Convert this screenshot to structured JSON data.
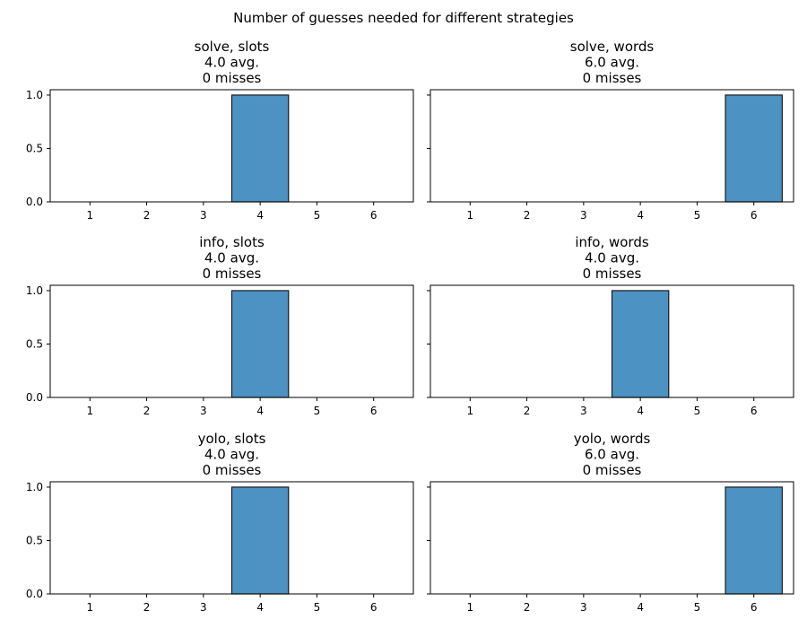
{
  "figure": {
    "title": "Number of guesses needed for different strategies"
  },
  "style": {
    "bar_fill": "#4c92c3",
    "bar_edge": "#1a1a1a",
    "axes_edge": "#000000",
    "background": "#ffffff"
  },
  "chart_data": [
    {
      "type": "bar",
      "title_lines": [
        "solve, slots",
        "4.0 avg.",
        "0 misses"
      ],
      "categories": [
        1,
        2,
        3,
        4,
        5,
        6
      ],
      "values": [
        0,
        0,
        0,
        1,
        0,
        0
      ],
      "xlim": [
        0.3,
        6.7
      ],
      "ylim": [
        0,
        1.05
      ],
      "yticks": [
        "0.0",
        "0.5",
        "1.0"
      ],
      "ytick_values": [
        0,
        0.5,
        1.0
      ],
      "show_ytick_labels": true
    },
    {
      "type": "bar",
      "title_lines": [
        "solve, words",
        "6.0 avg.",
        "0 misses"
      ],
      "categories": [
        1,
        2,
        3,
        4,
        5,
        6
      ],
      "values": [
        0,
        0,
        0,
        0,
        0,
        1
      ],
      "xlim": [
        0.3,
        6.7
      ],
      "ylim": [
        0,
        1.05
      ],
      "yticks": [
        "0.0",
        "0.5",
        "1.0"
      ],
      "ytick_values": [
        0,
        0.5,
        1.0
      ],
      "show_ytick_labels": false
    },
    {
      "type": "bar",
      "title_lines": [
        "info, slots",
        "4.0 avg.",
        "0 misses"
      ],
      "categories": [
        1,
        2,
        3,
        4,
        5,
        6
      ],
      "values": [
        0,
        0,
        0,
        1,
        0,
        0
      ],
      "xlim": [
        0.3,
        6.7
      ],
      "ylim": [
        0,
        1.05
      ],
      "yticks": [
        "0.0",
        "0.5",
        "1.0"
      ],
      "ytick_values": [
        0,
        0.5,
        1.0
      ],
      "show_ytick_labels": true
    },
    {
      "type": "bar",
      "title_lines": [
        "info, words",
        "4.0 avg.",
        "0 misses"
      ],
      "categories": [
        1,
        2,
        3,
        4,
        5,
        6
      ],
      "values": [
        0,
        0,
        0,
        1,
        0,
        0
      ],
      "xlim": [
        0.3,
        6.7
      ],
      "ylim": [
        0,
        1.05
      ],
      "yticks": [
        "0.0",
        "0.5",
        "1.0"
      ],
      "ytick_values": [
        0,
        0.5,
        1.0
      ],
      "show_ytick_labels": false
    },
    {
      "type": "bar",
      "title_lines": [
        "yolo, slots",
        "4.0 avg.",
        "0 misses"
      ],
      "categories": [
        1,
        2,
        3,
        4,
        5,
        6
      ],
      "values": [
        0,
        0,
        0,
        1,
        0,
        0
      ],
      "xlim": [
        0.3,
        6.7
      ],
      "ylim": [
        0,
        1.05
      ],
      "yticks": [
        "0.0",
        "0.5",
        "1.0"
      ],
      "ytick_values": [
        0,
        0.5,
        1.0
      ],
      "show_ytick_labels": true
    },
    {
      "type": "bar",
      "title_lines": [
        "yolo, words",
        "6.0 avg.",
        "0 misses"
      ],
      "categories": [
        1,
        2,
        3,
        4,
        5,
        6
      ],
      "values": [
        0,
        0,
        0,
        0,
        0,
        1
      ],
      "xlim": [
        0.3,
        6.7
      ],
      "ylim": [
        0,
        1.05
      ],
      "yticks": [
        "0.0",
        "0.5",
        "1.0"
      ],
      "ytick_values": [
        0,
        0.5,
        1.0
      ],
      "show_ytick_labels": false
    }
  ]
}
